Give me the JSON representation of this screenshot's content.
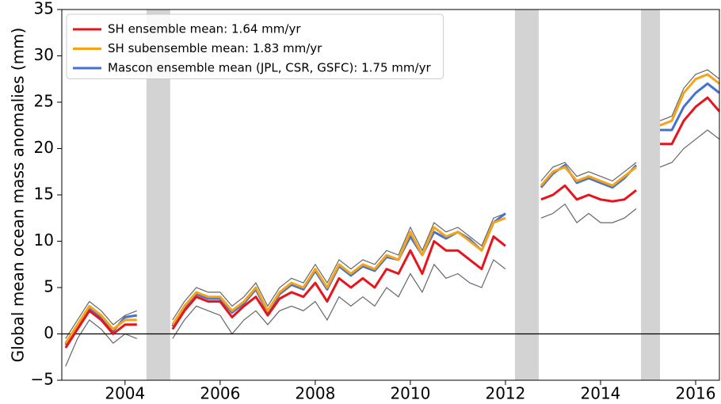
{
  "chart_data": {
    "type": "line",
    "ylabel": "Global mean ocean mass anomalies (mm)",
    "xlim": [
      2002.67,
      2016.5
    ],
    "ylim": [
      -5,
      35
    ],
    "xticks": [
      2004,
      2006,
      2008,
      2010,
      2012,
      2014,
      2016
    ],
    "yticks": [
      {
        "value": -5,
        "label": "−5"
      },
      0,
      5,
      10,
      15,
      20,
      25,
      30,
      35
    ],
    "reference_line": 0,
    "gaps": [
      [
        2004.45,
        2004.95
      ],
      [
        2012.2,
        2012.7
      ],
      [
        2014.85,
        2015.25
      ]
    ],
    "gap_color": "#d3d3d3",
    "legend": "upper left",
    "x": [
      2002.75,
      2003,
      2003.25,
      2003.5,
      2003.75,
      2004,
      2004.25,
      2004.5,
      2004.75,
      2005,
      2005.25,
      2005.5,
      2005.75,
      2006,
      2006.25,
      2006.5,
      2006.75,
      2007,
      2007.25,
      2007.5,
      2007.75,
      2008,
      2008.25,
      2008.5,
      2008.75,
      2009,
      2009.25,
      2009.5,
      2009.75,
      2010,
      2010.25,
      2010.5,
      2010.75,
      2011,
      2011.25,
      2011.5,
      2011.75,
      2012,
      2012.25,
      2012.5,
      2012.75,
      2013,
      2013.25,
      2013.5,
      2013.75,
      2014,
      2014.25,
      2014.5,
      2014.75,
      2015,
      2015.25,
      2015.5,
      2015.75,
      2016,
      2016.25,
      2016.5
    ],
    "members": [
      {
        "color": "#666666",
        "values": [
          -3.5,
          -0.5,
          1.5,
          0.5,
          -1.0,
          0.0,
          -0.5,
          null,
          null,
          -0.5,
          1.5,
          3.0,
          2.5,
          2.0,
          0.0,
          1.5,
          2.5,
          1.0,
          2.5,
          3.0,
          2.5,
          3.5,
          1.5,
          4.0,
          3.0,
          4.0,
          3.0,
          5.0,
          4.0,
          6.5,
          4.5,
          7.5,
          6.0,
          6.5,
          5.5,
          5.0,
          8.0,
          7.0,
          null,
          null,
          12.5,
          13.0,
          14.0,
          12.0,
          13.0,
          12.0,
          12.0,
          12.5,
          13.5,
          null,
          18.0,
          18.5,
          20.0,
          21.0,
          22.0,
          21.0
        ]
      },
      {
        "color": "#666666",
        "values": [
          -0.5,
          1.5,
          3.5,
          2.5,
          1.0,
          2.0,
          2.5,
          null,
          null,
          1.5,
          3.5,
          5.0,
          4.5,
          4.5,
          3.0,
          4.0,
          5.5,
          3.0,
          5.0,
          6.0,
          5.5,
          7.5,
          5.5,
          8.0,
          7.0,
          8.0,
          7.5,
          9.0,
          8.5,
          11.5,
          9.0,
          12.0,
          11.0,
          11.5,
          10.5,
          9.5,
          12.5,
          13.0,
          null,
          null,
          16.5,
          18.0,
          18.5,
          17.0,
          17.5,
          17.0,
          16.5,
          17.5,
          18.5,
          null,
          23.0,
          23.5,
          26.5,
          28.0,
          28.5,
          27.5
        ]
      }
    ],
    "series": [
      {
        "name": "SH ensemble mean: 1.64 mm/yr",
        "color": "#e8141c",
        "values": [
          -1.5,
          0.5,
          2.5,
          1.5,
          0.0,
          1.0,
          1.0,
          null,
          null,
          0.5,
          2.5,
          4.0,
          3.5,
          3.5,
          1.8,
          3.0,
          4.0,
          2.0,
          3.8,
          4.5,
          4.0,
          5.5,
          3.5,
          6.0,
          5.0,
          6.0,
          5.0,
          7.0,
          6.5,
          9.0,
          6.5,
          10.0,
          9.0,
          9.0,
          8.0,
          7.0,
          10.5,
          9.5,
          null,
          null,
          14.5,
          15.0,
          16.0,
          14.5,
          15.0,
          14.5,
          14.3,
          14.5,
          15.5,
          null,
          20.5,
          20.5,
          23.0,
          24.5,
          25.5,
          24.0
        ]
      },
      {
        "name": "SH subensemble mean: 1.83 mm/yr",
        "color": "#f5a317",
        "values": [
          -1.0,
          1.0,
          3.0,
          2.0,
          0.5,
          1.5,
          1.5,
          null,
          null,
          1.0,
          3.0,
          4.5,
          4.0,
          4.0,
          2.5,
          3.5,
          5.0,
          2.5,
          4.5,
          5.5,
          5.0,
          7.0,
          5.0,
          7.5,
          6.5,
          7.5,
          7.0,
          8.5,
          8.0,
          11.0,
          8.5,
          11.5,
          10.5,
          11.0,
          10.0,
          9.0,
          12.0,
          12.5,
          null,
          null,
          16.0,
          17.5,
          18.0,
          16.5,
          17.0,
          16.5,
          16.0,
          17.0,
          18.0,
          null,
          22.5,
          23.0,
          26.0,
          27.5,
          28.0,
          27.0
        ]
      },
      {
        "name": "Mascon ensemble mean (JPL, CSR, GSFC): 1.75 mm/yr",
        "color": "#4472d4",
        "values": [
          -1.2,
          0.8,
          2.8,
          1.8,
          0.3,
          1.8,
          2.0,
          null,
          null,
          0.8,
          2.8,
          4.3,
          3.8,
          3.8,
          2.3,
          3.3,
          4.8,
          2.3,
          4.3,
          5.3,
          4.8,
          6.8,
          4.8,
          7.3,
          6.3,
          7.3,
          6.8,
          8.3,
          8.0,
          10.5,
          8.5,
          11.0,
          10.3,
          11.0,
          10.2,
          9.0,
          12.0,
          13.0,
          null,
          null,
          15.8,
          17.3,
          18.2,
          16.3,
          16.8,
          16.3,
          15.8,
          16.8,
          18.2,
          null,
          22.0,
          22.0,
          24.5,
          26.0,
          27.0,
          26.0
        ]
      }
    ]
  }
}
